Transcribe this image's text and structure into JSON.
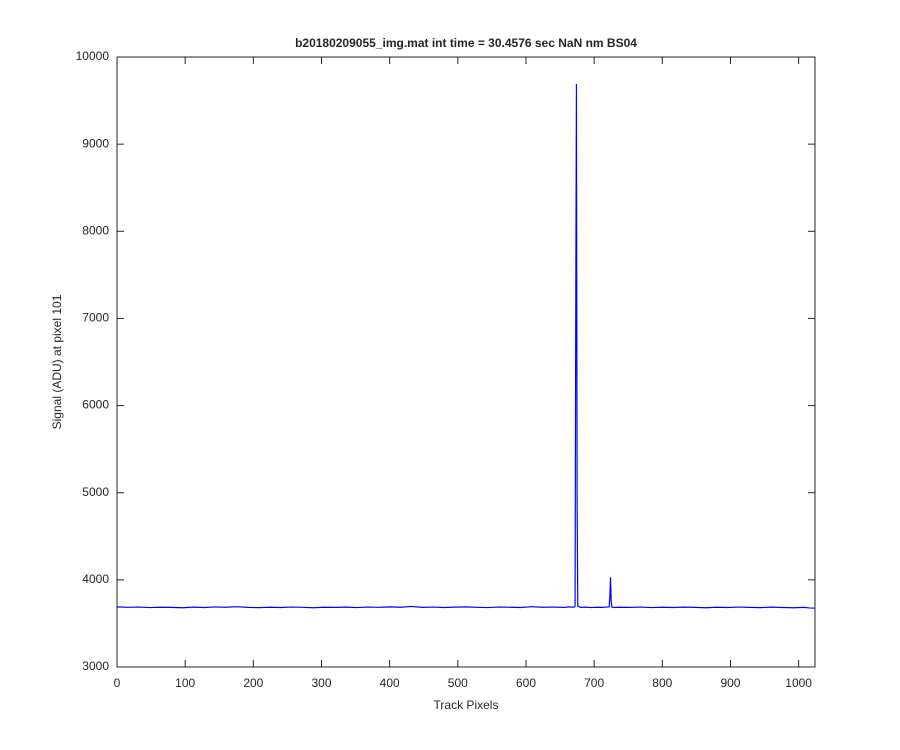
{
  "chart_data": {
    "type": "line",
    "title": "b20180209055_img.mat int time = 30.4576 sec  NaN nm BS04",
    "x_label": "Track Pixels",
    "y_label": "Signal (ADU) at pixel 101",
    "xlim": [
      0,
      1024
    ],
    "ylim": [
      3000,
      10000
    ],
    "xticks": [
      0,
      100,
      200,
      300,
      400,
      500,
      600,
      700,
      800,
      900,
      1000
    ],
    "yticks": [
      3000,
      4000,
      5000,
      6000,
      7000,
      8000,
      9000,
      10000
    ],
    "grid": false,
    "series": [
      {
        "name": "signal",
        "color": "#0000ff",
        "x": [
          0,
          16,
          32,
          48,
          64,
          80,
          96,
          112,
          128,
          144,
          160,
          176,
          192,
          208,
          224,
          240,
          256,
          272,
          288,
          304,
          320,
          336,
          352,
          368,
          384,
          400,
          416,
          432,
          448,
          464,
          480,
          496,
          512,
          528,
          544,
          560,
          576,
          592,
          608,
          624,
          640,
          656,
          664,
          670,
          672,
          673,
          674,
          675,
          676,
          680,
          688,
          696,
          704,
          712,
          718,
          722,
          723,
          724,
          725,
          726,
          730,
          736,
          752,
          768,
          784,
          800,
          816,
          832,
          848,
          864,
          880,
          896,
          912,
          928,
          944,
          960,
          976,
          992,
          1008,
          1016,
          1023
        ],
        "values": [
          3690,
          3685,
          3688,
          3682,
          3686,
          3684,
          3680,
          3687,
          3683,
          3689,
          3686,
          3692,
          3684,
          3681,
          3686,
          3683,
          3688,
          3685,
          3680,
          3686,
          3684,
          3687,
          3682,
          3688,
          3685,
          3690,
          3686,
          3695,
          3684,
          3688,
          3683,
          3687,
          3690,
          3685,
          3682,
          3688,
          3686,
          3683,
          3692,
          3686,
          3688,
          3684,
          3690,
          3685,
          3700,
          7000,
          9690,
          4900,
          3700,
          3684,
          3687,
          3682,
          3686,
          3684,
          3688,
          3690,
          3800,
          4030,
          3750,
          3688,
          3683,
          3686,
          3684,
          3688,
          3682,
          3686,
          3683,
          3687,
          3684,
          3680,
          3686,
          3683,
          3688,
          3684,
          3681,
          3687,
          3683,
          3680,
          3684,
          3678,
          3676
        ]
      }
    ]
  }
}
